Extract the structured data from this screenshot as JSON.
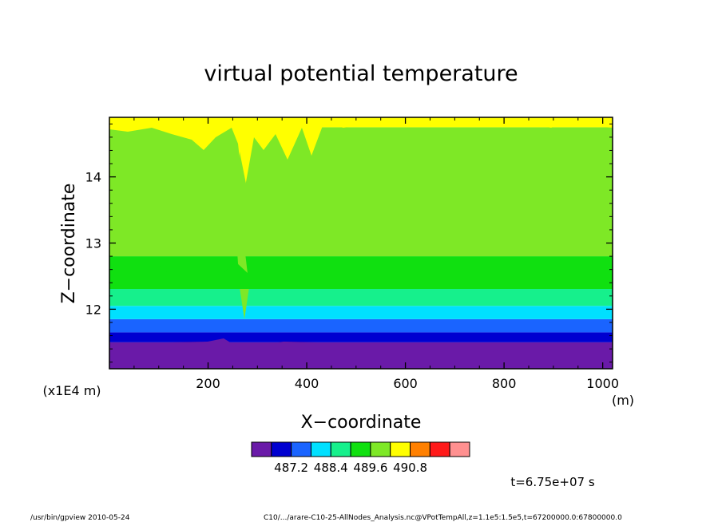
{
  "chart_data": {
    "type": "heatmap",
    "title": "virtual potential temperature",
    "xlabel": "X−coordinate",
    "x_unit": "(m)",
    "ylabel": "Z−coordinate",
    "y_unit": "(x1E4 m)",
    "xlim": [
      0,
      1020
    ],
    "ylim": [
      11.1,
      14.9
    ],
    "x_ticks": [
      "200",
      "400",
      "600",
      "800",
      "1000"
    ],
    "y_ticks": [
      "12",
      "13",
      "14"
    ],
    "colorbar": {
      "levels": [
        486.6,
        487.2,
        487.8,
        488.4,
        489.0,
        489.6,
        490.2,
        490.8
      ],
      "labels": [
        "487.2",
        "488.4",
        "489.6",
        "490.8"
      ],
      "colors": [
        "#6a1aa8",
        "#0000d0",
        "#1a64ff",
        "#00e0ff",
        "#16f08c",
        "#10e010",
        "#7ee826",
        "#ffff00",
        "#ff8000",
        "#ff1a1a",
        "#ff9090"
      ]
    },
    "bands": [
      {
        "z_from": 11.1,
        "z_to": 11.5,
        "color_index": 0,
        "approx_value": 487.0
      },
      {
        "z_from": 11.5,
        "z_to": 11.65,
        "color_index": 1,
        "approx_value": 487.4
      },
      {
        "z_from": 11.65,
        "z_to": 11.85,
        "color_index": 2,
        "approx_value": 487.9
      },
      {
        "z_from": 11.85,
        "z_to": 12.05,
        "color_index": 3,
        "approx_value": 488.3
      },
      {
        "z_from": 12.05,
        "z_to": 12.45,
        "color_index": 4,
        "approx_value": 488.7
      },
      {
        "z_from": 12.45,
        "z_to": 12.8,
        "color_index": 5,
        "approx_value": 489.1
      },
      {
        "z_from": 12.8,
        "z_to": 14.75,
        "color_index": 6,
        "approx_value": 489.4
      },
      {
        "z_from": 14.75,
        "z_to": 14.9,
        "color_index": 7,
        "approx_value": 489.8
      }
    ],
    "time_label": "t=6.75e+07 s"
  },
  "footer": {
    "left": "/usr/bin/gpview  2010-05-24",
    "right": "C10/.../arare-C10-25-AllNodes_Analysis.nc@VPotTempAll,z=1.1e5:1.5e5,t=67200000.0:67800000.0"
  }
}
